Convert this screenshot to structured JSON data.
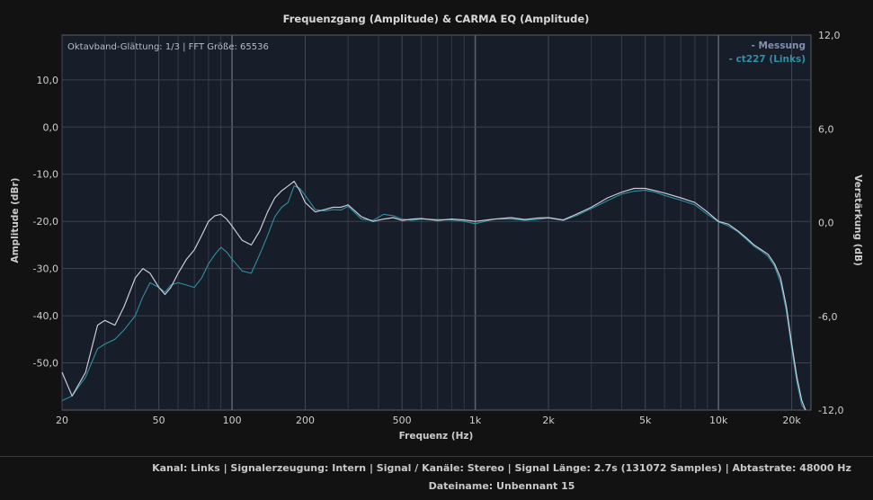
{
  "chart_data": {
    "type": "line",
    "title": "Frequenzgang (Amplitude) & CARMA EQ (Amplitude)",
    "annotation": "Oktavband-Glättung: 1/3 | FFT Größe: 65536",
    "xlabel": "Frequenz (Hz)",
    "ylabel": "Amplitude (dBr)",
    "y2label": "Verstärkung (dB)",
    "x_scale": "log",
    "xlim": [
      20,
      24000
    ],
    "ylim": [
      -60,
      19.5
    ],
    "y2lim": [
      -12,
      12
    ],
    "x_ticks": [
      20,
      50,
      100,
      200,
      500,
      1000,
      2000,
      5000,
      10000,
      20000
    ],
    "x_tick_labels": [
      "20",
      "50",
      "100",
      "200",
      "500",
      "1k",
      "2k",
      "5k",
      "10k",
      "20k"
    ],
    "y_ticks": [
      10,
      0,
      -10,
      -20,
      -30,
      -40,
      -50
    ],
    "y_tick_labels": [
      "10,0",
      "0,0",
      "-10,0",
      "-20,0",
      "-30,0",
      "-40,0",
      "-50,0"
    ],
    "y2_ticks": [
      12,
      6,
      0,
      -6,
      -12
    ],
    "y2_tick_labels": [
      "12,0",
      "6,0",
      "0,0",
      "-6,0",
      "-12,0"
    ],
    "grid": true,
    "legend_position": "top-right",
    "series": [
      {
        "name": "- Messung",
        "color": "#c8ccd8",
        "x": [
          20,
          22,
          25,
          28,
          30,
          33,
          36,
          40,
          43,
          46,
          50,
          53,
          56,
          60,
          65,
          70,
          75,
          80,
          85,
          90,
          95,
          100,
          110,
          120,
          130,
          140,
          150,
          160,
          170,
          180,
          190,
          200,
          220,
          240,
          260,
          280,
          300,
          340,
          380,
          420,
          460,
          500,
          550,
          600,
          700,
          800,
          900,
          1000,
          1200,
          1400,
          1600,
          1800,
          2000,
          2300,
          2600,
          3000,
          3500,
          4000,
          4500,
          5000,
          5500,
          6000,
          7000,
          8000,
          9000,
          10000,
          11000,
          12000,
          13000,
          14000,
          15000,
          16000,
          17000,
          18000,
          19000,
          20000,
          21000,
          22000,
          22800
        ],
        "y": [
          -52,
          -57,
          -52,
          -42,
          -41,
          -42,
          -38,
          -32,
          -30,
          -31,
          -34,
          -35.5,
          -34,
          -31,
          -28,
          -26,
          -23,
          -20,
          -18.8,
          -18.5,
          -19.5,
          -21,
          -24,
          -25,
          -22,
          -18,
          -15,
          -13.5,
          -12.5,
          -11.5,
          -13.5,
          -16,
          -18,
          -17.5,
          -17,
          -17,
          -16.5,
          -19,
          -20,
          -19.5,
          -19.2,
          -19.8,
          -19.5,
          -19.4,
          -19.8,
          -19.5,
          -19.7,
          -20,
          -19.5,
          -19.2,
          -19.6,
          -19.3,
          -19.2,
          -19.7,
          -18.5,
          -17,
          -15,
          -13.8,
          -13,
          -13,
          -13.5,
          -14,
          -15,
          -16,
          -18,
          -20,
          -20.6,
          -22,
          -23.5,
          -25,
          -26,
          -27,
          -29,
          -32,
          -38,
          -46,
          -53,
          -58,
          -60
        ]
      },
      {
        "name": "- ct227 (Links)",
        "color": "#2f8fa3",
        "x": [
          20,
          22,
          25,
          28,
          30,
          33,
          36,
          40,
          43,
          46,
          50,
          53,
          56,
          60,
          65,
          70,
          75,
          80,
          85,
          90,
          95,
          100,
          110,
          120,
          130,
          140,
          150,
          160,
          170,
          180,
          190,
          200,
          220,
          240,
          260,
          280,
          300,
          340,
          380,
          420,
          460,
          500,
          550,
          600,
          700,
          800,
          900,
          1000,
          1200,
          1400,
          1600,
          1800,
          2000,
          2300,
          2600,
          3000,
          3500,
          4000,
          4500,
          5000,
          5500,
          6000,
          7000,
          8000,
          9000,
          10000,
          11000,
          12000,
          13000,
          14000,
          15000,
          16000,
          17000,
          18000,
          19000,
          20000,
          21000,
          22000,
          22800
        ],
        "y": [
          -58,
          -57,
          -53,
          -47,
          -46,
          -45,
          -43,
          -40,
          -36,
          -33,
          -34,
          -35,
          -33.5,
          -33,
          -33.5,
          -34,
          -32,
          -29,
          -27,
          -25.5,
          -26.5,
          -28,
          -30.5,
          -31,
          -27,
          -23,
          -19,
          -17,
          -16,
          -12.5,
          -13,
          -14.5,
          -17.5,
          -17.8,
          -17.5,
          -17.6,
          -16.8,
          -19.5,
          -19.8,
          -18.5,
          -18.8,
          -19.5,
          -19.8,
          -19.5,
          -19.6,
          -19.7,
          -20,
          -20.5,
          -19.5,
          -19.5,
          -19.8,
          -19.6,
          -19.3,
          -19.8,
          -18.8,
          -17.3,
          -15.6,
          -14.2,
          -13.6,
          -13.4,
          -13.8,
          -14.5,
          -15.5,
          -16.5,
          -18.5,
          -20.1,
          -21,
          -22.2,
          -23.8,
          -25.3,
          -26.3,
          -27.5,
          -29.5,
          -33,
          -39,
          -47,
          -54,
          -59,
          -60
        ]
      }
    ]
  },
  "footer": {
    "line1": "Kanal: Links  |  Signalerzeugung: Intern  |  Signal / Kanäle: Stereo  |  Signal Länge: 2.7s (131072 Samples)  |  Abtastrate: 48000 Hz",
    "line2": "Dateiname: Unbennant 15"
  }
}
